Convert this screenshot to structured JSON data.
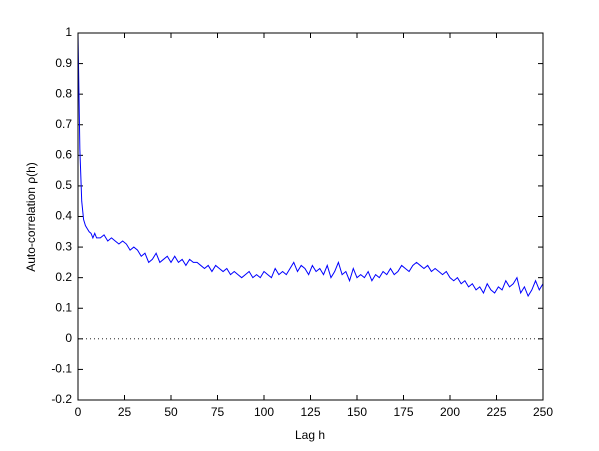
{
  "chart_data": {
    "type": "line",
    "xlabel": "Lag h",
    "ylabel": "Auto-correlation ρ(h)",
    "x": [
      0,
      1,
      2,
      3,
      4,
      5,
      6,
      7,
      8,
      9,
      10,
      12,
      14,
      16,
      18,
      20,
      22,
      24,
      26,
      28,
      30,
      32,
      34,
      36,
      38,
      40,
      42,
      44,
      46,
      48,
      50,
      52,
      54,
      56,
      58,
      60,
      62,
      64,
      66,
      68,
      70,
      72,
      74,
      76,
      78,
      80,
      82,
      84,
      86,
      88,
      90,
      92,
      94,
      96,
      98,
      100,
      102,
      104,
      106,
      108,
      110,
      112,
      114,
      116,
      118,
      120,
      122,
      124,
      126,
      128,
      130,
      132,
      134,
      136,
      138,
      140,
      142,
      144,
      146,
      148,
      150,
      152,
      154,
      156,
      158,
      160,
      162,
      164,
      166,
      168,
      170,
      172,
      174,
      176,
      178,
      180,
      182,
      184,
      186,
      188,
      190,
      192,
      194,
      196,
      198,
      200,
      202,
      204,
      206,
      208,
      210,
      212,
      214,
      216,
      218,
      220,
      222,
      224,
      226,
      228,
      230,
      232,
      234,
      236,
      238,
      240,
      242,
      244,
      246,
      248,
      250
    ],
    "series": [
      {
        "color": "#0000ff",
        "values": [
          1.0,
          0.62,
          0.45,
          0.39,
          0.37,
          0.36,
          0.35,
          0.345,
          0.33,
          0.345,
          0.33,
          0.33,
          0.34,
          0.32,
          0.33,
          0.32,
          0.31,
          0.32,
          0.31,
          0.29,
          0.3,
          0.29,
          0.27,
          0.28,
          0.25,
          0.26,
          0.28,
          0.25,
          0.26,
          0.27,
          0.25,
          0.27,
          0.25,
          0.26,
          0.24,
          0.26,
          0.25,
          0.25,
          0.24,
          0.23,
          0.24,
          0.22,
          0.24,
          0.23,
          0.22,
          0.23,
          0.21,
          0.22,
          0.21,
          0.2,
          0.21,
          0.22,
          0.2,
          0.21,
          0.2,
          0.22,
          0.21,
          0.2,
          0.23,
          0.21,
          0.22,
          0.21,
          0.23,
          0.25,
          0.22,
          0.24,
          0.23,
          0.21,
          0.24,
          0.22,
          0.23,
          0.21,
          0.24,
          0.2,
          0.22,
          0.25,
          0.21,
          0.22,
          0.19,
          0.23,
          0.2,
          0.21,
          0.2,
          0.22,
          0.19,
          0.21,
          0.2,
          0.22,
          0.21,
          0.23,
          0.21,
          0.22,
          0.24,
          0.23,
          0.22,
          0.24,
          0.25,
          0.24,
          0.23,
          0.24,
          0.22,
          0.23,
          0.22,
          0.21,
          0.22,
          0.2,
          0.19,
          0.2,
          0.18,
          0.19,
          0.17,
          0.18,
          0.16,
          0.17,
          0.15,
          0.18,
          0.16,
          0.15,
          0.17,
          0.16,
          0.19,
          0.17,
          0.18,
          0.2,
          0.15,
          0.17,
          0.14,
          0.16,
          0.19,
          0.16,
          0.18
        ]
      }
    ],
    "xlim": [
      0,
      250
    ],
    "xticks": [
      0,
      25,
      50,
      75,
      100,
      125,
      150,
      175,
      200,
      225,
      250
    ],
    "ylim": [
      -0.2,
      1
    ],
    "yticks": [
      -0.2,
      -0.1,
      0,
      0.1,
      0.2,
      0.3,
      0.4,
      0.5,
      0.6,
      0.7,
      0.8,
      0.9,
      1
    ],
    "reference_line": {
      "y": 0,
      "style": "dotted"
    },
    "grid": false
  }
}
